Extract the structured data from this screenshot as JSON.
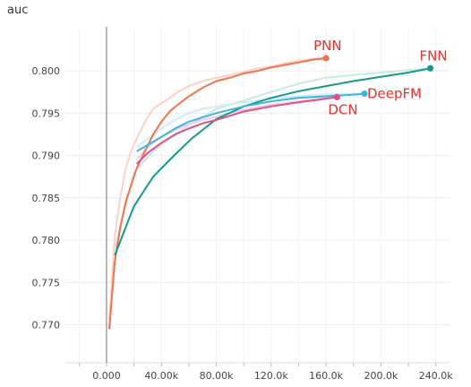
{
  "chart_data": {
    "type": "line",
    "title": "",
    "ylabel": "auc",
    "xlabel": "",
    "xlim": [
      -30000,
      250000
    ],
    "ylim": [
      0.7655,
      0.8052
    ],
    "x_ticks": [
      0,
      40000,
      80000,
      120000,
      160000,
      200000,
      240000
    ],
    "x_tick_labels": [
      "0.000",
      "40.00k",
      "80.00k",
      "120.0k",
      "160.0k",
      "200.0k",
      "240.0k"
    ],
    "y_ticks": [
      0.77,
      0.775,
      0.78,
      0.785,
      0.79,
      0.795,
      0.8
    ],
    "y_tick_labels": [
      "0.770",
      "0.775",
      "0.780",
      "0.785",
      "0.790",
      "0.795",
      "0.800"
    ],
    "grid": true,
    "legend": "inline labels at line ends",
    "series": [
      {
        "name": "PNN",
        "color": "#f0734d",
        "raw_color": "#fbd2c4",
        "x": [
          2000,
          6000,
          10000,
          14000,
          18000,
          22000,
          28000,
          34000,
          40000,
          46000,
          52000,
          60000,
          70000,
          80000,
          90000,
          100000,
          110000,
          120000,
          130000,
          140000,
          150000,
          160000
        ],
        "values": [
          0.7695,
          0.7775,
          0.7815,
          0.7845,
          0.7865,
          0.7885,
          0.7905,
          0.7925,
          0.794,
          0.7952,
          0.796,
          0.797,
          0.798,
          0.7988,
          0.7992,
          0.7997,
          0.8,
          0.8004,
          0.8007,
          0.801,
          0.8013,
          0.8015
        ],
        "raw": [
          0.7705,
          0.7805,
          0.785,
          0.7885,
          0.7905,
          0.792,
          0.794,
          0.7955,
          0.7962,
          0.7968,
          0.7975,
          0.7982,
          0.7988,
          0.7992,
          0.7995,
          0.7999,
          0.8003,
          0.8005,
          0.8009,
          0.8012,
          0.8014,
          0.8015
        ]
      },
      {
        "name": "FNN",
        "color": "#14998c",
        "raw_color": "#c7ebe6",
        "x": [
          6000,
          20000,
          34000,
          48000,
          62000,
          80000,
          100000,
          120000,
          140000,
          160000,
          180000,
          200000,
          220000,
          236000
        ],
        "values": [
          0.7782,
          0.784,
          0.7875,
          0.7898,
          0.792,
          0.7943,
          0.7958,
          0.7968,
          0.7976,
          0.7982,
          0.7988,
          0.7993,
          0.7998,
          0.8003
        ],
        "raw": [
          0.779,
          0.788,
          0.7905,
          0.7922,
          0.7938,
          0.7955,
          0.7965,
          0.7975,
          0.7985,
          0.7992,
          0.7995,
          0.7998,
          0.8001,
          0.8003
        ]
      },
      {
        "name": "DeepFM",
        "color": "#3cb6e3",
        "raw_color": "#cdeaf7",
        "x": [
          22000,
          40000,
          50000,
          60000,
          70000,
          80000,
          100000,
          120000,
          140000,
          160000,
          180000,
          188000
        ],
        "values": [
          0.7905,
          0.7922,
          0.7932,
          0.794,
          0.7945,
          0.795,
          0.7958,
          0.7964,
          0.7968,
          0.797,
          0.7972,
          0.7973
        ],
        "raw": [
          0.791,
          0.7932,
          0.7942,
          0.795,
          0.7955,
          0.7958,
          0.7963,
          0.7967,
          0.797,
          0.7972,
          0.7973,
          0.7973
        ]
      },
      {
        "name": "DCN",
        "color": "#e14f8e",
        "raw_color": "#f6c8dc",
        "x": [
          22000,
          30000,
          40000,
          50000,
          60000,
          70000,
          80000,
          90000,
          100000,
          120000,
          140000,
          155000,
          168000
        ],
        "values": [
          0.789,
          0.7903,
          0.7915,
          0.7925,
          0.7932,
          0.7938,
          0.7942,
          0.7947,
          0.7952,
          0.7958,
          0.7963,
          0.7966,
          0.7969
        ],
        "raw": [
          0.7895,
          0.791,
          0.7922,
          0.793,
          0.7937,
          0.7942,
          0.7946,
          0.795,
          0.7954,
          0.796,
          0.7964,
          0.7967,
          0.7969
        ]
      }
    ]
  }
}
